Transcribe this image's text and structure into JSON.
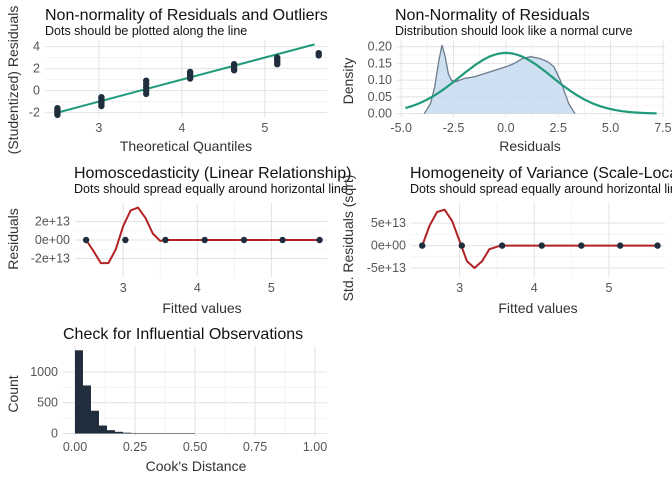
{
  "chart_data": [
    {
      "type": "scatter",
      "title": "Non-normality of Residuals and Outliers",
      "subtitle": "Dots should be plotted along the line",
      "xlabel": "Theoretical Quantiles",
      "ylabel": "(Studentized) Residuals",
      "xlim": [
        2.35,
        5.75
      ],
      "ylim": [
        -2.4,
        4.6
      ],
      "xticks": [
        3,
        4,
        5
      ],
      "yticks": [
        -2,
        0,
        2,
        4
      ],
      "reference_line": {
        "x": [
          2.5,
          5.6
        ],
        "y": [
          -2.0,
          4.2
        ],
        "color": "#1f9a7a"
      },
      "point_color": "#1f2d3d",
      "points": [
        {
          "x": 2.5,
          "y": -1.6
        },
        {
          "x": 2.5,
          "y": -1.75
        },
        {
          "x": 2.5,
          "y": -1.9
        },
        {
          "x": 2.5,
          "y": -2.05
        },
        {
          "x": 2.5,
          "y": -2.2
        },
        {
          "x": 3.03,
          "y": -0.6
        },
        {
          "x": 3.03,
          "y": -0.8
        },
        {
          "x": 3.03,
          "y": -1.0
        },
        {
          "x": 3.03,
          "y": -1.2
        },
        {
          "x": 3.03,
          "y": -1.4
        },
        {
          "x": 3.57,
          "y": 0.9
        },
        {
          "x": 3.57,
          "y": 0.6
        },
        {
          "x": 3.57,
          "y": 0.3
        },
        {
          "x": 3.57,
          "y": 0.0
        },
        {
          "x": 3.57,
          "y": -0.3
        },
        {
          "x": 4.1,
          "y": 1.7
        },
        {
          "x": 4.1,
          "y": 1.5
        },
        {
          "x": 4.1,
          "y": 1.3
        },
        {
          "x": 4.1,
          "y": 1.1
        },
        {
          "x": 4.63,
          "y": 2.4
        },
        {
          "x": 4.63,
          "y": 2.2
        },
        {
          "x": 4.63,
          "y": 2.0
        },
        {
          "x": 4.63,
          "y": 1.85
        },
        {
          "x": 5.15,
          "y": 3.0
        },
        {
          "x": 5.15,
          "y": 2.8
        },
        {
          "x": 5.15,
          "y": 2.6
        },
        {
          "x": 5.15,
          "y": 2.4
        },
        {
          "x": 5.65,
          "y": 3.4
        },
        {
          "x": 5.65,
          "y": 3.2
        }
      ]
    },
    {
      "type": "area",
      "title": "Non-Normality of Residuals",
      "subtitle": "Distribution should look like a normal curve",
      "xlabel": "Residuals",
      "ylabel": "Density",
      "xlim": [
        -5.2,
        7.6
      ],
      "ylim": [
        -0.01,
        0.22
      ],
      "xticks": [
        -5.0,
        -2.5,
        0.0,
        2.5,
        5.0,
        7.5
      ],
      "xtick_labels": [
        "-5.0",
        "-2.5",
        "0.0",
        "2.5",
        "5.0",
        "7.5"
      ],
      "yticks": [
        0.0,
        0.05,
        0.1,
        0.15,
        0.2
      ],
      "ytick_labels": [
        "0.00",
        "0.05",
        "0.10",
        "0.15",
        "0.20"
      ],
      "density_fill": "#c6dbef",
      "density_stroke": "#6b7b8c",
      "normal_color": "#1f9a7a",
      "density": {
        "x": [
          -3.9,
          -3.6,
          -3.4,
          -3.2,
          -3.05,
          -2.9,
          -2.75,
          -2.6,
          -2.4,
          -2.0,
          -1.5,
          -1.0,
          -0.5,
          0.0,
          0.4,
          0.8,
          1.2,
          1.6,
          2.0,
          2.3,
          2.6,
          3.0,
          3.3
        ],
        "y": [
          0.0,
          0.03,
          0.08,
          0.16,
          0.205,
          0.17,
          0.12,
          0.1,
          0.095,
          0.105,
          0.11,
          0.12,
          0.13,
          0.14,
          0.15,
          0.165,
          0.17,
          0.165,
          0.155,
          0.14,
          0.1,
          0.03,
          0.0
        ]
      },
      "normal_curve": {
        "mean": 0.0,
        "sd": 2.2,
        "range": [
          -4.8,
          7.2
        ]
      }
    },
    {
      "type": "scatter",
      "title": "Homoscedasticity (Linear Relationship)",
      "subtitle": "Dots should spread equally around horizontal line",
      "xlabel": "Fitted values",
      "ylabel": "Residuals",
      "xlim": [
        2.35,
        5.75
      ],
      "ylim": [
        -40000000000000,
        40000000000000
      ],
      "xticks": [
        3,
        4,
        5
      ],
      "yticks": [
        -20000000000000,
        0,
        20000000000000
      ],
      "ytick_labels": [
        "-2e+13",
        "0e+00",
        "2e+13"
      ],
      "point_color": "#1f2d3d",
      "line_color": "#b22222",
      "points": [
        {
          "x": 2.5,
          "y": 0
        },
        {
          "x": 3.03,
          "y": 0
        },
        {
          "x": 3.57,
          "y": 0
        },
        {
          "x": 4.1,
          "y": 0
        },
        {
          "x": 4.63,
          "y": 0
        },
        {
          "x": 5.15,
          "y": 0
        },
        {
          "x": 5.65,
          "y": 0
        }
      ],
      "smooth": {
        "x": [
          2.5,
          2.6,
          2.7,
          2.8,
          2.9,
          3.0,
          3.1,
          3.2,
          3.3,
          3.4,
          3.5,
          3.6,
          3.8,
          4.0,
          4.5,
          5.0,
          5.65
        ],
        "y": [
          0,
          -12000000000000,
          -25000000000000,
          -25000000000000,
          -10000000000000,
          15000000000000,
          32000000000000,
          35000000000000,
          24000000000000,
          7000000000000,
          -1000000000000,
          0,
          0,
          0,
          0,
          0,
          0
        ]
      }
    },
    {
      "type": "scatter",
      "title": "Homogeneity of Variance (Scale-Location)",
      "subtitle": "Dots should spread equally around horizontal line",
      "xlabel": "Fitted values",
      "ylabel": "Std. Residuals (sqrt)",
      "xlim": [
        2.35,
        5.75
      ],
      "ylim": [
        -70000000000000,
        95000000000000
      ],
      "xticks": [
        3,
        4,
        5
      ],
      "yticks": [
        -50000000000000,
        0,
        50000000000000
      ],
      "ytick_labels": [
        "-5e+13",
        "0e+00",
        "5e+13"
      ],
      "point_color": "#1f2d3d",
      "line_color": "#b22222",
      "points": [
        {
          "x": 2.5,
          "y": 0
        },
        {
          "x": 3.03,
          "y": 0
        },
        {
          "x": 3.57,
          "y": 0
        },
        {
          "x": 4.1,
          "y": 0
        },
        {
          "x": 4.63,
          "y": 0
        },
        {
          "x": 5.15,
          "y": 0
        },
        {
          "x": 5.65,
          "y": 0
        }
      ],
      "smooth": {
        "x": [
          2.5,
          2.6,
          2.7,
          2.8,
          2.9,
          3.0,
          3.1,
          3.2,
          3.3,
          3.4,
          3.55,
          3.7,
          4.0,
          4.5,
          5.0,
          5.65
        ],
        "y": [
          0,
          45000000000000,
          75000000000000,
          80000000000000,
          55000000000000,
          10000000000000,
          -35000000000000,
          -50000000000000,
          -35000000000000,
          -8000000000000,
          0,
          0,
          0,
          0,
          0,
          0
        ]
      }
    },
    {
      "type": "bar",
      "title": "Check for Influential Observations",
      "xlabel": "Cook's Distance",
      "ylabel": "Count",
      "xlim": [
        -0.05,
        1.05
      ],
      "ylim": [
        -40,
        1420
      ],
      "xticks": [
        0.0,
        0.25,
        0.5,
        0.75,
        1.0
      ],
      "xtick_labels": [
        "0.00",
        "0.25",
        "0.50",
        "0.75",
        "1.00"
      ],
      "yticks": [
        0,
        500,
        1000
      ],
      "bar_color": "#1f2d3d",
      "bin_width": 0.0333,
      "bins": [
        0.0,
        0.0333,
        0.0667,
        0.1,
        0.1333,
        0.1667,
        0.2,
        0.2333,
        0.2667,
        0.3,
        0.3333,
        0.3667,
        0.4,
        0.4333,
        0.4667
      ],
      "values": [
        1350,
        780,
        370,
        130,
        55,
        28,
        14,
        9,
        6,
        4,
        3,
        2,
        2,
        1,
        1
      ]
    }
  ]
}
